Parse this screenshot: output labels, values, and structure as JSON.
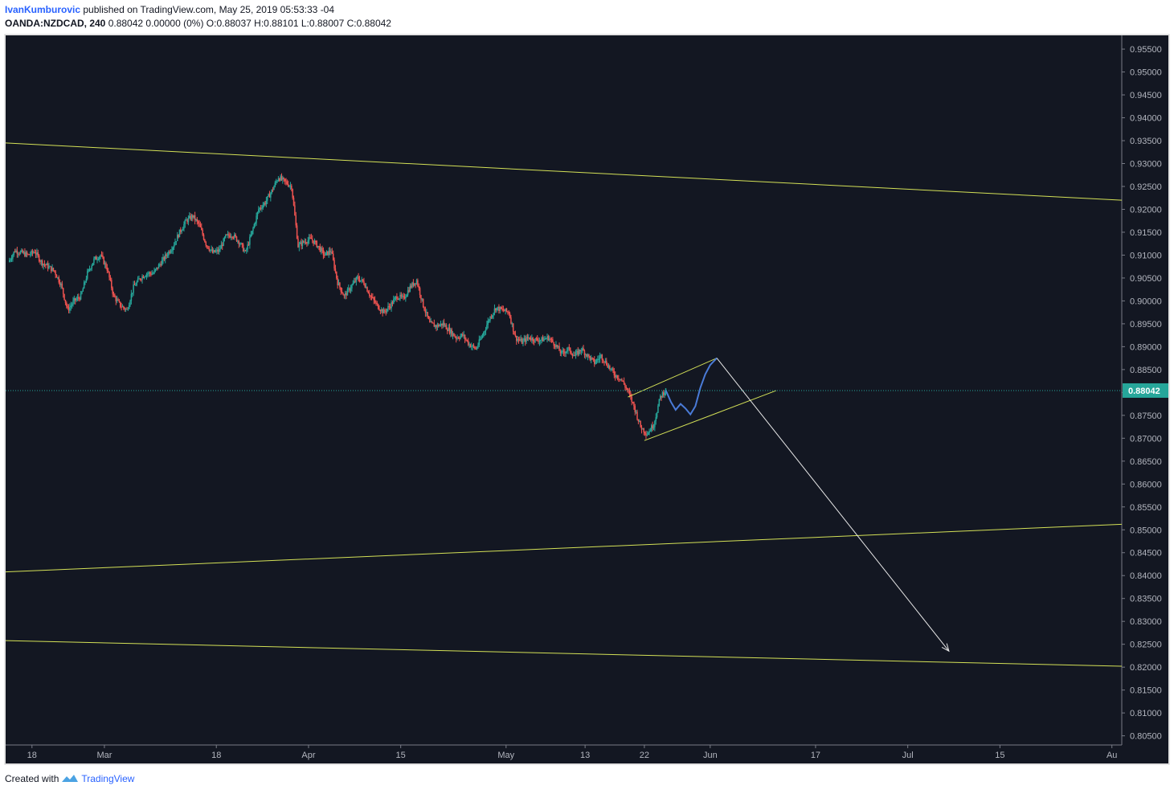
{
  "header": {
    "author": "IvanKumburovic",
    "published_text": "published on TradingView.com, May 25, 2019 05:53:33 -04",
    "symbol": "OANDA:NZDCAD, 240",
    "quote": "0.88042 0.00000 (0%) O:0.88037 H:0.88101 L:0.88007 C:0.88042"
  },
  "footer": {
    "created_with": "Created with",
    "brand": "TradingView"
  },
  "colors": {
    "background": "#131722",
    "axis_text": "#b2b5be",
    "up_candle": "#26a69a",
    "down_candle": "#ef5350",
    "trendline": "#d4e157",
    "projection": "#4a7bd8",
    "arrow": "#e8e8e8",
    "price_line": "#26a69a",
    "price_label_bg": "#26a69a"
  },
  "chart_data": {
    "type": "candlestick",
    "symbol": "OANDA:NZDCAD",
    "interval": "240",
    "last_price": "0.88042",
    "ylim": [
      0.803,
      0.958
    ],
    "y_ticks": [
      "0.95500",
      "0.95000",
      "0.94500",
      "0.94000",
      "0.93500",
      "0.93000",
      "0.92500",
      "0.92000",
      "0.91500",
      "0.91000",
      "0.90500",
      "0.90000",
      "0.89500",
      "0.89000",
      "0.88500",
      "0.88000",
      "0.87500",
      "0.87000",
      "0.86500",
      "0.86000",
      "0.85500",
      "0.85000",
      "0.84500",
      "0.84000",
      "0.83500",
      "0.83000",
      "0.82500",
      "0.82000",
      "0.81500",
      "0.81000",
      "0.80500"
    ],
    "x_ticks": [
      {
        "label": "18",
        "date": "2019-02-18"
      },
      {
        "label": "Mar",
        "date": "2019-03-01"
      },
      {
        "label": "18",
        "date": "2019-03-18"
      },
      {
        "label": "Apr",
        "date": "2019-04-01"
      },
      {
        "label": "15",
        "date": "2019-04-15"
      },
      {
        "label": "May",
        "date": "2019-05-01"
      },
      {
        "label": "13",
        "date": "2019-05-13"
      },
      {
        "label": "22",
        "date": "2019-05-22"
      },
      {
        "label": "Jun",
        "date": "2019-06-01"
      },
      {
        "label": "17",
        "date": "2019-06-17"
      },
      {
        "label": "Jul",
        "date": "2019-07-01"
      },
      {
        "label": "15",
        "date": "2019-07-15"
      },
      {
        "label": "Au",
        "date": "2019-08-01"
      }
    ],
    "xlim": [
      "2019-02-14T00:00",
      "2019-08-02T12:00"
    ],
    "price_path": [
      [
        "2019-02-14T12:00",
        0.9085
      ],
      [
        "2019-02-15T12:00",
        0.911
      ],
      [
        "2019-02-17T12:00",
        0.91
      ],
      [
        "2019-02-18T12:00",
        0.9108
      ],
      [
        "2019-02-19T12:00",
        0.9085
      ],
      [
        "2019-02-20T12:00",
        0.9075
      ],
      [
        "2019-02-21T12:00",
        0.9065
      ],
      [
        "2019-02-22T12:00",
        0.9035
      ],
      [
        "2019-02-23T12:00",
        0.898
      ],
      [
        "2019-02-24T12:00",
        0.9
      ],
      [
        "2019-02-25T12:00",
        0.901
      ],
      [
        "2019-02-26T12:00",
        0.906
      ],
      [
        "2019-02-27T12:00",
        0.909
      ],
      [
        "2019-02-28T12:00",
        0.91
      ],
      [
        "2019-03-01T12:00",
        0.907
      ],
      [
        "2019-03-02T12:00",
        0.901
      ],
      [
        "2019-03-03T12:00",
        0.899
      ],
      [
        "2019-03-04T12:00",
        0.898
      ],
      [
        "2019-03-05T12:00",
        0.903
      ],
      [
        "2019-03-06T12:00",
        0.905
      ],
      [
        "2019-03-07T12:00",
        0.906
      ],
      [
        "2019-03-08T12:00",
        0.906
      ],
      [
        "2019-03-09T12:00",
        0.908
      ],
      [
        "2019-03-10T12:00",
        0.91
      ],
      [
        "2019-03-11T12:00",
        0.912
      ],
      [
        "2019-03-12T12:00",
        0.915
      ],
      [
        "2019-03-13T12:00",
        0.9175
      ],
      [
        "2019-03-14T12:00",
        0.9185
      ],
      [
        "2019-03-15T12:00",
        0.9165
      ],
      [
        "2019-03-16T12:00",
        0.9125
      ],
      [
        "2019-03-17T12:00",
        0.9105
      ],
      [
        "2019-03-18T12:00",
        0.911
      ],
      [
        "2019-03-19T12:00",
        0.914
      ],
      [
        "2019-03-20T12:00",
        0.9145
      ],
      [
        "2019-03-21T12:00",
        0.913
      ],
      [
        "2019-03-22T12:00",
        0.9105
      ],
      [
        "2019-03-23T12:00",
        0.915
      ],
      [
        "2019-03-24T12:00",
        0.92
      ],
      [
        "2019-03-25T12:00",
        0.9215
      ],
      [
        "2019-03-26T12:00",
        0.924
      ],
      [
        "2019-03-27T12:00",
        0.927
      ],
      [
        "2019-03-28T12:00",
        0.926
      ],
      [
        "2019-03-29T12:00",
        0.925
      ],
      [
        "2019-03-30T12:00",
        0.912
      ],
      [
        "2019-03-31T12:00",
        0.913
      ],
      [
        "2019-04-01T12:00",
        0.9135
      ],
      [
        "2019-04-02T12:00",
        0.912
      ],
      [
        "2019-04-03T12:00",
        0.91
      ],
      [
        "2019-04-04T12:00",
        0.911
      ],
      [
        "2019-04-05T12:00",
        0.904
      ],
      [
        "2019-04-06T12:00",
        0.901
      ],
      [
        "2019-04-07T12:00",
        0.903
      ],
      [
        "2019-04-08T12:00",
        0.905
      ],
      [
        "2019-04-09T12:00",
        0.904
      ],
      [
        "2019-04-10T12:00",
        0.901
      ],
      [
        "2019-04-11T12:00",
        0.899
      ],
      [
        "2019-04-12T12:00",
        0.8975
      ],
      [
        "2019-04-13T12:00",
        0.899
      ],
      [
        "2019-04-14T12:00",
        0.901
      ],
      [
        "2019-04-15T12:00",
        0.9005
      ],
      [
        "2019-04-16T12:00",
        0.903
      ],
      [
        "2019-04-17T12:00",
        0.9045
      ],
      [
        "2019-04-18T12:00",
        0.899
      ],
      [
        "2019-04-19T12:00",
        0.895
      ],
      [
        "2019-04-20T12:00",
        0.8945
      ],
      [
        "2019-04-21T12:00",
        0.895
      ],
      [
        "2019-04-22T12:00",
        0.8935
      ],
      [
        "2019-04-23T12:00",
        0.892
      ],
      [
        "2019-04-24T12:00",
        0.8925
      ],
      [
        "2019-04-25T12:00",
        0.8905
      ],
      [
        "2019-04-26T12:00",
        0.8895
      ],
      [
        "2019-04-27T12:00",
        0.8925
      ],
      [
        "2019-04-28T12:00",
        0.896
      ],
      [
        "2019-04-29T12:00",
        0.8985
      ],
      [
        "2019-04-30T12:00",
        0.898
      ],
      [
        "2019-05-01T12:00",
        0.8975
      ],
      [
        "2019-05-02T12:00",
        0.892
      ],
      [
        "2019-05-03T12:00",
        0.891
      ],
      [
        "2019-05-04T12:00",
        0.892
      ],
      [
        "2019-05-05T12:00",
        0.8915
      ],
      [
        "2019-05-06T12:00",
        0.8915
      ],
      [
        "2019-05-07T12:00",
        0.892
      ],
      [
        "2019-05-08T12:00",
        0.8905
      ],
      [
        "2019-05-09T12:00",
        0.8885
      ],
      [
        "2019-05-10T12:00",
        0.8895
      ],
      [
        "2019-05-11T12:00",
        0.888
      ],
      [
        "2019-05-12T12:00",
        0.8895
      ],
      [
        "2019-05-13T12:00",
        0.888
      ],
      [
        "2019-05-14T12:00",
        0.8865
      ],
      [
        "2019-05-15T12:00",
        0.888
      ],
      [
        "2019-05-16T12:00",
        0.886
      ],
      [
        "2019-05-17T12:00",
        0.884
      ],
      [
        "2019-05-18T12:00",
        0.883
      ],
      [
        "2019-05-19T12:00",
        0.8805
      ],
      [
        "2019-05-20T12:00",
        0.877
      ],
      [
        "2019-05-21T12:00",
        0.8725
      ],
      [
        "2019-05-22T12:00",
        0.871
      ],
      [
        "2019-05-23T12:00",
        0.873
      ],
      [
        "2019-05-24T12:00",
        0.879
      ],
      [
        "2019-05-25T06:00",
        0.8805
      ]
    ],
    "projection": [
      [
        "2019-05-25T06:00",
        0.8805
      ],
      [
        "2019-05-26T00:00",
        0.878
      ],
      [
        "2019-05-26T18:00",
        0.8762
      ],
      [
        "2019-05-27T12:00",
        0.8775
      ],
      [
        "2019-05-28T06:00",
        0.8765
      ],
      [
        "2019-05-29T00:00",
        0.8752
      ],
      [
        "2019-05-29T18:00",
        0.877
      ],
      [
        "2019-05-30T12:00",
        0.881
      ],
      [
        "2019-05-31T06:00",
        0.884
      ],
      [
        "2019-06-01T00:00",
        0.886
      ],
      [
        "2019-06-02T00:00",
        0.8875
      ]
    ],
    "trendlines": [
      {
        "name": "upper-channel",
        "from": [
          "2019-02-14T00:00",
          0.9345
        ],
        "to": [
          "2019-08-02T12:00",
          0.922
        ]
      },
      {
        "name": "rising-channel",
        "from": [
          "2019-02-14T00:00",
          0.8408
        ],
        "to": [
          "2019-08-02T12:00",
          0.8512
        ]
      },
      {
        "name": "lower-channel",
        "from": [
          "2019-02-14T00:00",
          0.8258
        ],
        "to": [
          "2019-08-02T12:00",
          0.8202
        ]
      },
      {
        "name": "flag-top",
        "from": [
          "2019-05-19T12:00",
          0.879
        ],
        "to": [
          "2019-06-02T00:00",
          0.8875
        ]
      },
      {
        "name": "flag-bottom",
        "from": [
          "2019-05-22T00:00",
          0.8695
        ],
        "to": [
          "2019-06-11T00:00",
          0.8804
        ]
      }
    ],
    "arrow": {
      "from": [
        "2019-06-02T00:00",
        0.8875
      ],
      "to": [
        "2019-07-07T06:00",
        0.8235
      ]
    }
  }
}
